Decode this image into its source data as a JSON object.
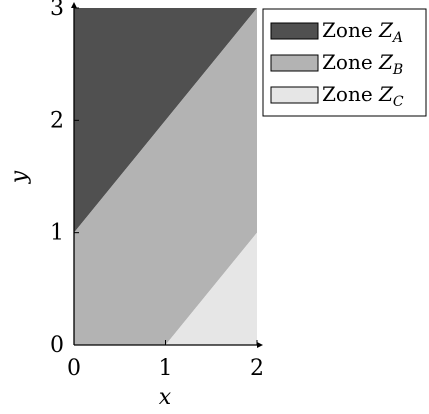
{
  "chart_data": {
    "type": "area",
    "xlabel": "x",
    "ylabel": "y",
    "xlim": [
      0,
      2
    ],
    "ylim": [
      0,
      3
    ],
    "xticks": [
      "0",
      "1",
      "2"
    ],
    "yticks": [
      "0",
      "1",
      "2",
      "3"
    ],
    "grid": false,
    "legend_position": "top-right",
    "series": [
      {
        "name_prefix": "Zone",
        "name_var": "Z",
        "name_sub": "A",
        "color": "#505050",
        "polygon": [
          [
            0,
            1
          ],
          [
            0,
            3
          ],
          [
            2,
            3
          ]
        ]
      },
      {
        "name_prefix": "Zone",
        "name_var": "Z",
        "name_sub": "B",
        "color": "#b3b3b3",
        "polygon": [
          [
            0,
            0
          ],
          [
            0,
            1
          ],
          [
            2,
            3
          ],
          [
            2,
            1
          ],
          [
            1,
            0
          ]
        ]
      },
      {
        "name_prefix": "Zone",
        "name_var": "Z",
        "name_sub": "C",
        "color": "#e6e6e6",
        "polygon": [
          [
            1,
            0
          ],
          [
            2,
            0
          ],
          [
            2,
            1
          ]
        ]
      }
    ]
  }
}
